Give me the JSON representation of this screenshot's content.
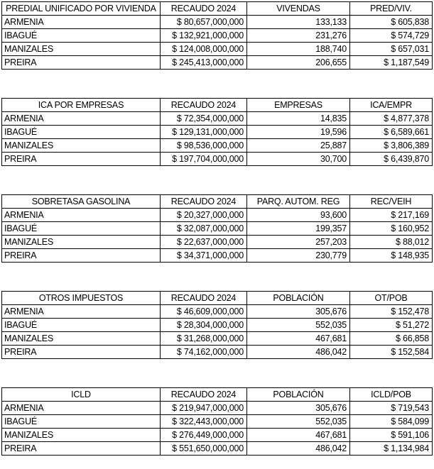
{
  "colors": {
    "background": "#ffffff",
    "border": "#000000",
    "text": "#000000"
  },
  "tables": [
    {
      "id": "predial-unificado-por-vivienda",
      "title": "PREDIAL UNIFICADO POR VIVIENDA",
      "headers": [
        "RECAUDO 2024",
        "VIVENDAS",
        "PRED/VIV."
      ],
      "rows": [
        {
          "city": "ARMENIA",
          "recaudo": "$ 80,657,000,000",
          "count": "133,133",
          "ratio": "$ 605,838"
        },
        {
          "city": "IBAGUÉ",
          "recaudo": "$ 132,921,000,000",
          "count": "231,276",
          "ratio": "$ 574,729"
        },
        {
          "city": "MANIZALES",
          "recaudo": "$ 124,008,000,000",
          "count": "188,740",
          "ratio": "$ 657,031"
        },
        {
          "city": "PREIRA",
          "recaudo": "$ 245,413,000,000",
          "count": "206,655",
          "ratio": "$ 1,187,549"
        }
      ]
    },
    {
      "id": "ica-por-empresas",
      "title": "ICA POR EMPRESAS",
      "headers": [
        "RECAUDO 2024",
        "EMPRESAS",
        "ICA/EMPR"
      ],
      "rows": [
        {
          "city": "ARMENIA",
          "recaudo": "$ 72,354,000,000",
          "count": "14,835",
          "ratio": "$ 4,877,378"
        },
        {
          "city": "IBAGUÉ",
          "recaudo": "$ 129,131,000,000",
          "count": "19,596",
          "ratio": "$ 6,589,661"
        },
        {
          "city": "MANIZALES",
          "recaudo": "$ 98,536,000,000",
          "count": "25,887",
          "ratio": "$ 3,806,389"
        },
        {
          "city": "PREIRA",
          "recaudo": "$ 197,704,000,000",
          "count": "30,700",
          "ratio": "$ 6,439,870"
        }
      ]
    },
    {
      "id": "sobretasa-gasolina",
      "title": "SOBRETASA GASOLINA",
      "headers": [
        "RECAUDO 2024",
        "PARQ. AUTOM. REG",
        "REC/VEIH"
      ],
      "rows": [
        {
          "city": "ARMENIA",
          "recaudo": "$ 20,327,000,000",
          "count": "93,600",
          "ratio": "$ 217,169"
        },
        {
          "city": "IBAGUÉ",
          "recaudo": "$ 32,087,000,000",
          "count": "199,357",
          "ratio": "$ 160,952"
        },
        {
          "city": "MANIZALES",
          "recaudo": "$ 22,637,000,000",
          "count": "257,203",
          "ratio": "$ 88,012"
        },
        {
          "city": "PREIRA",
          "recaudo": "$ 34,371,000,000",
          "count": "230,779",
          "ratio": "$ 148,935"
        }
      ]
    },
    {
      "id": "otros-impuestos",
      "title": "OTROS IMPUESTOS",
      "headers": [
        "RECAUDO 2024",
        "POBLACIÓN",
        "OT/POB"
      ],
      "rows": [
        {
          "city": "ARMENIA",
          "recaudo": "$ 46,609,000,000",
          "count": "305,676",
          "ratio": "$ 152,478"
        },
        {
          "city": "IBAGUÉ",
          "recaudo": "$ 28,304,000,000",
          "count": "552,035",
          "ratio": "$ 51,272"
        },
        {
          "city": "MANIZALES",
          "recaudo": "$ 31,268,000,000",
          "count": "467,681",
          "ratio": "$ 66,858"
        },
        {
          "city": "PREIRA",
          "recaudo": "$ 74,162,000,000",
          "count": "486,042",
          "ratio": "$ 152,584"
        }
      ]
    },
    {
      "id": "icld",
      "title": "ICLD",
      "headers": [
        "RECAUDO 2024",
        "POBLACIÓN",
        "ICLD/POB"
      ],
      "rows": [
        {
          "city": "ARMENIA",
          "recaudo": "$ 219,947,000,000",
          "count": "305,676",
          "ratio": "$ 719,543"
        },
        {
          "city": "IBAGUÉ",
          "recaudo": "$ 322,443,000,000",
          "count": "552,035",
          "ratio": "$ 584,099"
        },
        {
          "city": "MANIZALES",
          "recaudo": "$ 276,449,000,000",
          "count": "467,681",
          "ratio": "$ 591,106"
        },
        {
          "city": "PREIRA",
          "recaudo": "$ 551,650,000,000",
          "count": "486,042",
          "ratio": "$ 1,134,984"
        }
      ]
    }
  ]
}
